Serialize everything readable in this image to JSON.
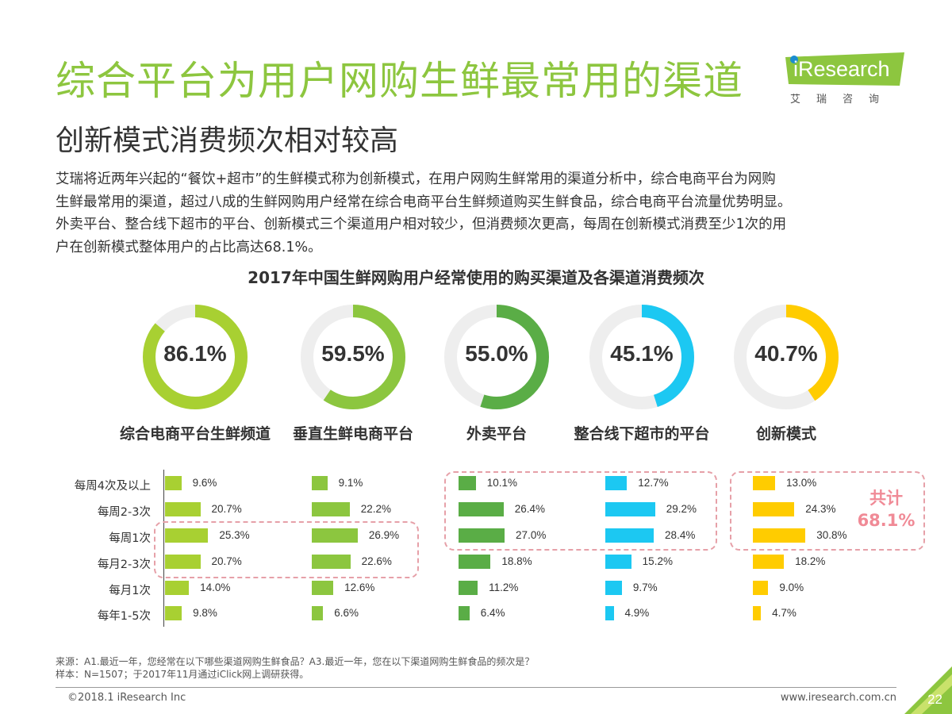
{
  "header": {
    "title": "综合平台为用户网购生鲜最常用的渠道",
    "subtitle": "创新模式消费频次相对较高",
    "logo_text": "iResearch",
    "logo_sub": "艾瑞咨询"
  },
  "description": [
    "艾瑞将近两年兴起的“餐饮+超市”的生鲜模式称为创新模式，在用户网购生鲜常用的渠道分析中，综合电商平台为网购",
    "生鲜最常用的渠道，超过八成的生鲜网购用户经常在综合电商平台生鲜频道购买生鲜食品，综合电商平台流量优势明显。",
    "外卖平台、整合线下超市的平台、创新模式三个渠道用户相对较少，但消费频次更高，每周在创新模式消费至少1次的用",
    "户在创新模式整体用户的占比高达68.1%。"
  ],
  "chart_data": {
    "type": "bar",
    "title": "2017年中国生鲜网购用户经常使用的购买渠道及各渠道消费频次",
    "channels": [
      {
        "name": "综合电商平台生鲜频道",
        "usage": 86.1,
        "usage_label": "86.1%",
        "color": "#a8d032"
      },
      {
        "name": "垂直生鲜电商平台",
        "usage": 59.5,
        "usage_label": "59.5%",
        "color": "#8cc63f"
      },
      {
        "name": "外卖平台",
        "usage": 55.0,
        "usage_label": "55.0%",
        "color": "#5aad46"
      },
      {
        "name": "整合线下超市的平台",
        "usage": 45.1,
        "usage_label": "45.1%",
        "color": "#1cc8f2"
      },
      {
        "name": "创新模式",
        "usage": 40.7,
        "usage_label": "40.7%",
        "color": "#ffcc00"
      }
    ],
    "categories": [
      "每周4次及以上",
      "每周2-3次",
      "每周1次",
      "每月2-3次",
      "每月1次",
      "每年1-5次"
    ],
    "series": [
      {
        "values": [
          9.6,
          20.7,
          25.3,
          20.7,
          14.0,
          9.8
        ],
        "labels": [
          "9.6%",
          "20.7%",
          "25.3%",
          "20.7%",
          "14.0%",
          "9.8%"
        ]
      },
      {
        "values": [
          9.1,
          22.2,
          26.9,
          22.6,
          12.6,
          6.6
        ],
        "labels": [
          "9.1%",
          "22.2%",
          "26.9%",
          "22.6%",
          "12.6%",
          "6.6%"
        ]
      },
      {
        "values": [
          10.1,
          26.4,
          27.0,
          18.8,
          11.2,
          6.4
        ],
        "labels": [
          "10.1%",
          "26.4%",
          "27.0%",
          "18.8%",
          "11.2%",
          "6.4%"
        ]
      },
      {
        "values": [
          12.7,
          29.2,
          28.4,
          15.2,
          9.7,
          4.9
        ],
        "labels": [
          "12.7%",
          "29.2%",
          "28.4%",
          "15.2%",
          "9.7%",
          "4.9%"
        ]
      },
      {
        "values": [
          13.0,
          24.3,
          30.8,
          18.2,
          9.0,
          4.7
        ],
        "labels": [
          "13.0%",
          "24.3%",
          "30.8%",
          "18.2%",
          "9.0%",
          "4.7%"
        ]
      }
    ],
    "annotation": {
      "line1": "共计",
      "line2": "68.1%"
    },
    "ring_track_color": "#eeeeee",
    "highlight_color": "#e6a0a8"
  },
  "footer": {
    "source_line1": "来源：A1.最近一年，您经常在以下哪些渠道网购生鲜食品？A3.最近一年，您在以下渠道网购生鲜食品的频次是？",
    "source_line2": "样本：N=1507；于2017年11月通过iClick网上调研获得。",
    "copyright": "©2018.1 iResearch Inc",
    "website": "www.iresearch.com.cn",
    "page": "22"
  }
}
